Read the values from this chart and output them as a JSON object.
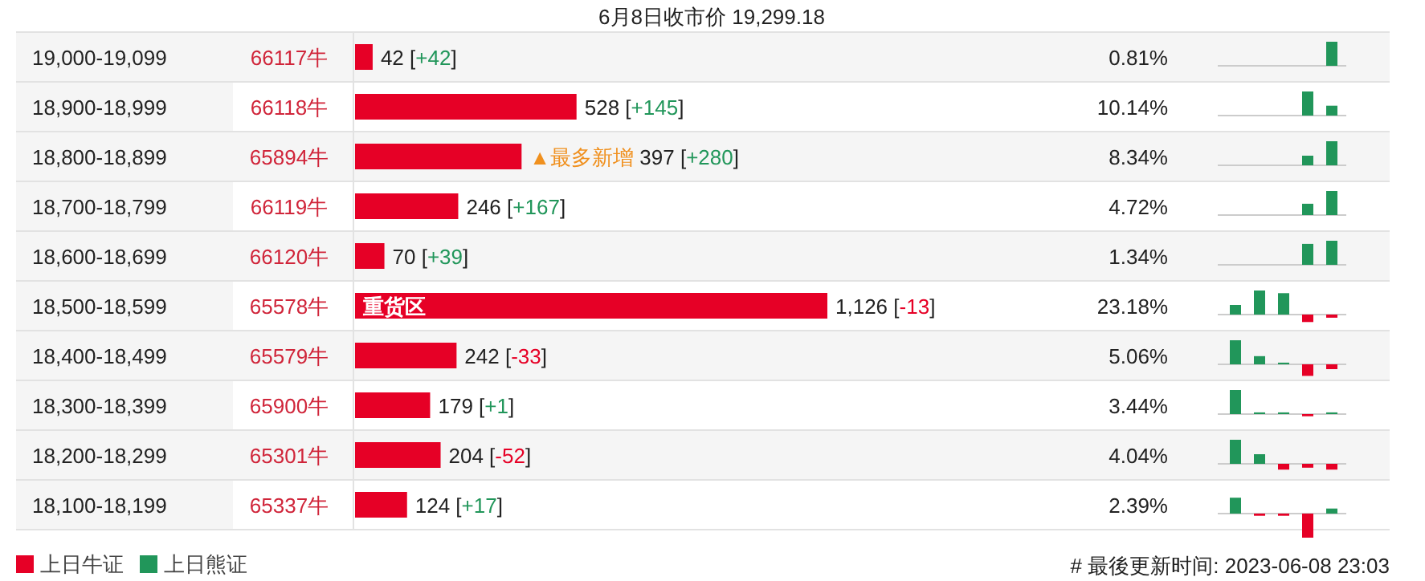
{
  "chart_data": {
    "type": "bar",
    "orientation": "horizontal",
    "title": "6月8日收市价 19,299.18",
    "color": "#e60026",
    "categories": [
      "19,000-19,099",
      "18,900-18,999",
      "18,800-18,899",
      "18,700-18,799",
      "18,600-18,699",
      "18,500-18,599",
      "18,400-18,499",
      "18,300-18,399",
      "18,200-18,299",
      "18,100-18,199"
    ],
    "values": [
      42,
      528,
      397,
      246,
      70,
      1126,
      242,
      179,
      204,
      124
    ],
    "value_labels": [
      "42 [+42]",
      "528 [+145]",
      "▲最多新增 397 [+280]",
      "246 [+167]",
      "70 [+39]",
      "1,126 [-13]",
      "242 [-33]",
      "179 [+1]",
      "204 [-52]",
      "124 [+17]"
    ],
    "annotations": [
      "66117牛",
      "66118牛",
      "65894牛",
      "66119牛",
      "66120牛",
      "65578牛",
      "65579牛",
      "65900牛",
      "65301牛",
      "65337牛",
      "0.81%",
      "10.14%",
      "8.34%",
      "4.72%",
      "1.34%",
      "23.18%",
      "5.06%",
      "3.44%",
      "4.04%",
      "2.39%",
      "重货区",
      "上日牛证",
      "上日熊证",
      "# 最後更新时间: 2023-06-08 23:03"
    ]
  }
}
